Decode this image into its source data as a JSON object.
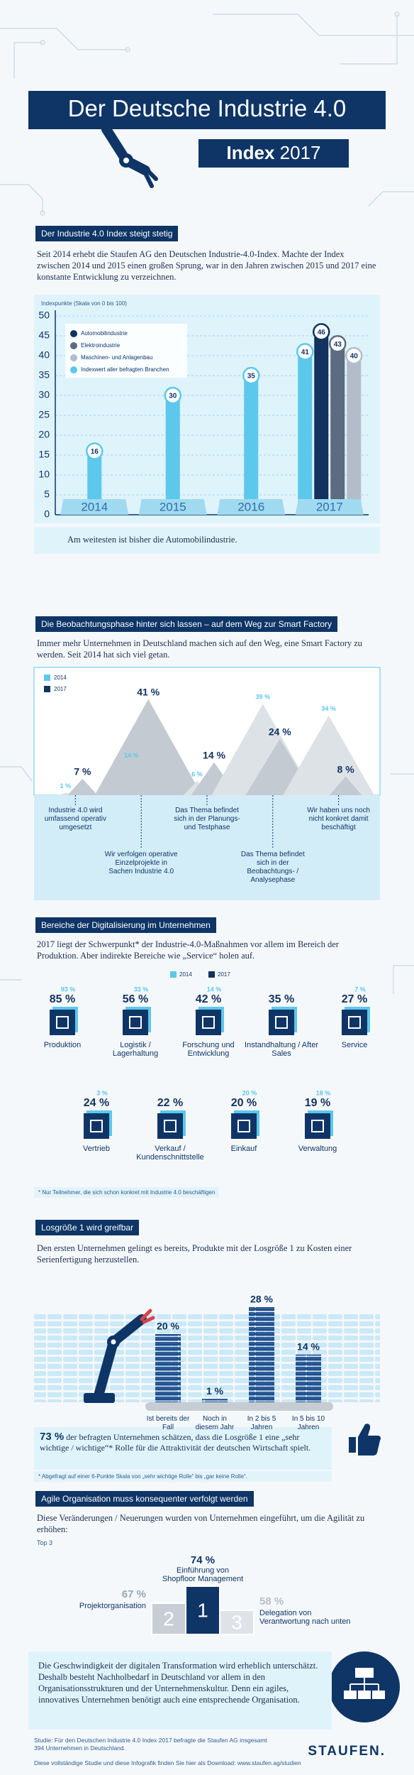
{
  "header": {
    "title": "Der Deutsche Industrie 4.0",
    "subtitle": "Index",
    "year": "2017"
  },
  "sections": [
    {
      "heading": "Der Industrie 4.0 Index steigt stetig",
      "text": "Seit 2014 erhebt die Staufen AG den Deutschen Industrie-4.0-Index. Machte der Index zwischen 2014 und 2015 einen großen Sprung, war in den Jahren zwischen 2015 und 2017 eine konstante Entwicklung zu verzeichnen.",
      "conclusion": "Am weitesten ist bisher die Automobilindustrie."
    },
    {
      "heading": "Die Beobachtungsphase hinter sich lassen – auf dem Weg zur Smart Factory",
      "text": "Immer mehr Unternehmen in Deutschland machen sich auf den Weg, eine Smart Factory zu werden. Seit 2014 hat sich viel getan."
    },
    {
      "heading": "Bereiche der Digitalisierung im Unternehmen",
      "text": "2017 liegt der Schwerpunkt* der Industrie-4.0-Maßnahmen vor allem im Bereich der Produktion. Aber indirekte Bereiche wie „Service“ holen auf.",
      "footnote": "* Nur Teilnehmer, die sich schon konkret mit Industrie 4.0 beschäftigen"
    },
    {
      "heading": "Losgröße 1 wird greifbar",
      "text": "Den ersten Unternehmen gelingt es bereits, Produkte mit der Losgröße 1 zu Kosten einer Serienfertigung herzustellen.",
      "callout_value": "73 %",
      "callout_text": "der befragten Unternehmen schätzen, dass die Losgröße 1 eine „sehr wichtige / wichtige“* Rolle für die Attraktivität der deutschen Wirtschaft spielt.",
      "footnote": "* Abgefragt auf einer 6-Punkte Skala von „sehr wichtige Rolle“ bis „gar keine Rolle“."
    },
    {
      "heading": "Agile Organisation muss konsequenter verfolgt werden",
      "text": "Diese Veränderungen / Neuerungen wurden von Unternehmen eingeführt, um die Agilität zu erhöhen:",
      "label": "Top 3"
    }
  ],
  "conclusion_box": {
    "text": "Die Geschwindigkeit der digitalen Transformation wird erheblich unterschätzt. Deshalb besteht Nachholbedarf in Deutschland vor allem in den Organisationsstrukturen und der Unternehmenskultur. Denn ein agiles, innovatives Unternehmen benötigt auch eine entsprechende Organisation."
  },
  "footer": {
    "source": "Studie: Für den Deutschen Industrie 4.0 Index 2017 befragte die Staufen AG insgesamt 394 Unternehmen in Deutschland.",
    "download": "Diese vollständige Studie und diese Infografik finden Sie hier als Download: www.staufen.ag/studien",
    "logo": "STAUFEN."
  },
  "chart_data": [
    {
      "type": "bar",
      "y_label": "Indexpunkte (Skala von 0 bis 100)",
      "categories": [
        "2014",
        "2015",
        "2016",
        "2017"
      ],
      "ylim": [
        0,
        50
      ],
      "yticks": [
        0,
        5,
        10,
        15,
        20,
        25,
        30,
        35,
        40,
        45,
        50
      ],
      "grid": true,
      "series": [
        {
          "name": "Automobilindustrie",
          "color": "#12325f",
          "values": [
            null,
            null,
            null,
            46
          ]
        },
        {
          "name": "Elektroindustrie",
          "color": "#5d6b82",
          "values": [
            null,
            null,
            null,
            43
          ]
        },
        {
          "name": "Maschinen- und Anlagenbau",
          "color": "#b3bdc9",
          "values": [
            null,
            null,
            null,
            40
          ]
        },
        {
          "name": "Indexwert aller befragten Branchen",
          "color": "#5bc8ec",
          "values": [
            16,
            30,
            35,
            41
          ]
        }
      ]
    },
    {
      "type": "mountain",
      "categories": [
        "Industrie 4.0 wird umfassend operativ umgesetzt",
        "Wir verfolgen operative Einzelprojekte in Sachen Industrie 4.0",
        "Das Thema befindet sich in der Planungs- und Testphase",
        "Das Thema befindet sich in der Beobachtungs- / Analysephase",
        "Wir haben uns noch nicht konkret damit beschäftigt"
      ],
      "series": [
        {
          "name": "2014",
          "color": "#5bc8ec",
          "values": [
            1,
            14,
            6,
            39,
            34
          ],
          "value_labels": [
            "1 %",
            "14 %",
            "6 %",
            "39 %",
            "34 %"
          ]
        },
        {
          "name": "2017",
          "color": "#12325f",
          "values": [
            7,
            41,
            14,
            24,
            8
          ],
          "value_labels": [
            "7 %",
            "41 %",
            "14 %",
            "24 %",
            "8 %"
          ]
        }
      ]
    },
    {
      "type": "icon-tiles",
      "categories": [
        "Produktion",
        "Logistik / Lagerhaltung",
        "Forschung und Entwicklung",
        "Instandhaltung / After Sales",
        "Service",
        "Vertrieb",
        "Verkauf / Kundenschnittstelle",
        "Einkauf",
        "Verwaltung"
      ],
      "series": [
        {
          "name": "2014",
          "color": "#5bc8ec",
          "values": [
            93,
            33,
            14,
            null,
            7,
            3,
            null,
            20,
            18
          ],
          "value_labels": [
            "93 %",
            "33 %",
            "14 %",
            null,
            "7 %",
            "3 %",
            null,
            "20 %",
            "18 %"
          ]
        },
        {
          "name": "2017",
          "color": "#12325f",
          "values": [
            85,
            56,
            42,
            35,
            27,
            24,
            22,
            20,
            19
          ],
          "value_labels": [
            "85 %",
            "56 %",
            "42 %",
            "35 %",
            "27 %",
            "24 %",
            "22 %",
            "20 %",
            "19 %"
          ]
        }
      ]
    },
    {
      "type": "stack",
      "categories": [
        "Ist bereits der Fall",
        "Noch in diesem Jahr",
        "In 2 bis 5 Jahren",
        "In 5 bis 10 Jahren"
      ],
      "values": [
        20,
        1,
        28,
        14
      ],
      "value_labels": [
        "20 %",
        "1 %",
        "28 %",
        "14 %"
      ],
      "color": "#1f4e8c"
    },
    {
      "type": "podium",
      "categories": [
        "Einführung von Shopfloor Management",
        "Projektorganisation",
        "Delegation von Verantwortung nach unten"
      ],
      "ranks": [
        1,
        2,
        3
      ],
      "values": [
        74,
        67,
        58
      ],
      "value_labels": [
        "74 %",
        "67 %",
        "58 %"
      ]
    }
  ]
}
